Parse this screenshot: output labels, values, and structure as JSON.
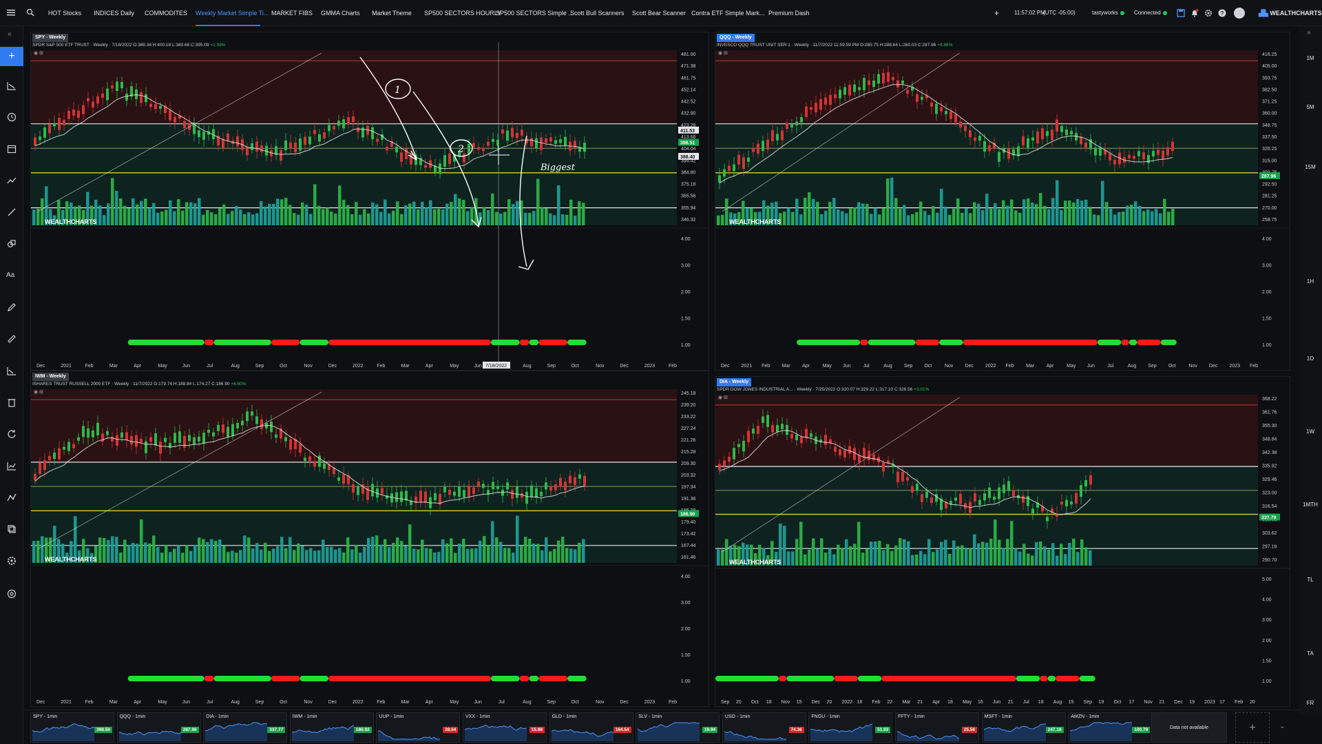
{
  "topbar": {
    "tabs": [
      {
        "label": "HOT Stocks",
        "x": 0
      },
      {
        "label": "INDICES Daily",
        "x": 0
      },
      {
        "label": "COMMODITES",
        "x": 0
      },
      {
        "label": "Weekly Market Simple Ti...",
        "x": 0
      },
      {
        "label": "MARKET FIBS",
        "x": 0
      },
      {
        "label": "GMMA Charts",
        "x": 0
      },
      {
        "label": "Market Theme",
        "x": 0
      },
      {
        "label": "SP500 SECTORS HOURLY",
        "x": 0
      },
      {
        "label": "SP500 SECTORS Simple ...",
        "x": 0
      },
      {
        "label": "Scott Bull Scanners",
        "x": 0
      },
      {
        "label": "Scott Bear Scanner",
        "x": 0
      },
      {
        "label": "Contra ETF Simple Mark...",
        "x": 0
      },
      {
        "label": "Premium Dash",
        "x": 0
      }
    ],
    "active_tab": 3,
    "add_tab": "+",
    "time": "11:57:02 PM",
    "timezone": "(UTC -05:00)",
    "broker": "tastyworks",
    "connection": "Connected",
    "brand": "WEALTHCHARTS"
  },
  "right_timeframes": [
    "1M",
    "5M",
    "15M",
    "1H",
    "1D",
    "1W",
    "1MTH",
    "TL",
    "TA",
    "FR"
  ],
  "panels": [
    {
      "id": "spy",
      "header": "SPY - Weekly",
      "sub_name": "SPDR S&P 500 ETF TRUST",
      "sub_info": "· Weekly · 7/18/2022 O:388.38 H:400.18 L:380.66 C:395.09",
      "sub_change": "+2.39%",
      "price_labels": [
        "481.00",
        "471.38",
        "461.75",
        "452.14",
        "442.52",
        "432.90",
        "423.28",
        "413.66",
        "404.04",
        "394.42",
        "384.80",
        "375.18",
        "365.56",
        "355.94",
        "346.32"
      ],
      "badges": [
        {
          "text": "411.53",
          "color": "#e5e7eb",
          "fg": "#111"
        },
        {
          "text": "398.51",
          "color": "#16a34a",
          "fg": "#fff"
        },
        {
          "text": "388.40",
          "color": "#e5e7eb",
          "fg": "#111"
        }
      ],
      "osc_labels": [
        "4.00",
        "3.00",
        "2.00",
        "1.50",
        "1.00"
      ],
      "dates": [
        "Dec",
        "2021",
        "Feb",
        "Mar",
        "Apr",
        "May",
        "Jun",
        "Jul",
        "Aug",
        "Sep",
        "Oct",
        "Nov",
        "Dec",
        "2022",
        "Feb",
        "Mar",
        "Apr",
        "May",
        "Jun",
        "Jul",
        "Aug",
        "Sep",
        "Oct",
        "Nov",
        "Dec",
        "2023",
        "Feb"
      ],
      "cursor_date": "7/18/2022",
      "annotations": [
        "1",
        "2",
        "Biggest"
      ],
      "logo": "WEALTHCHARTS"
    },
    {
      "id": "qqq",
      "header": "QQQ - Weekly",
      "sub_name": "INVESCO QQQ TRUST UNIT SER 1",
      "sub_info": "· Weekly · 11/7/2022 11:59:59 PM O:265.75 H:288.64 L:260.03 C:287.96",
      "sub_change": "+8.86%",
      "price_labels": [
        "416.25",
        "405.00",
        "393.75",
        "382.50",
        "371.25",
        "360.00",
        "348.75",
        "337.50",
        "326.25",
        "315.00",
        "303.75",
        "292.50",
        "281.25",
        "270.00",
        "258.75"
      ],
      "badges": [
        {
          "text": "287.96",
          "color": "#16a34a",
          "fg": "#fff"
        }
      ],
      "osc_labels": [
        "4.00",
        "3.00",
        "2.00",
        "1.50",
        "1.00"
      ],
      "dates": [
        "Dec",
        "2021",
        "Feb",
        "Mar",
        "Apr",
        "May",
        "Jun",
        "Jul",
        "Aug",
        "Sep",
        "Oct",
        "Nov",
        "Dec",
        "2022",
        "Feb",
        "Mar",
        "Apr",
        "May",
        "Jun",
        "Jul",
        "Aug",
        "Sep",
        "Oct",
        "Nov",
        "Dec",
        "2023",
        "Feb"
      ],
      "logo": "WEALTHCHARTS"
    },
    {
      "id": "iwm",
      "header": "IWM - Weekly",
      "sub_name": "ISHARES TRUST RUSSELL 2000 ETF",
      "sub_info": "· Weekly · 11/7/2022 O:179.74 H:188.84 L:174.27 C:186.90",
      "sub_change": "+4.60%",
      "price_labels": [
        "245.18",
        "239.20",
        "233.22",
        "227.24",
        "221.26",
        "215.28",
        "209.30",
        "203.32",
        "197.34",
        "191.36",
        "185.38",
        "179.40",
        "173.42",
        "167.44",
        "161.46"
      ],
      "badges": [
        {
          "text": "186.90",
          "color": "#16a34a",
          "fg": "#fff"
        }
      ],
      "osc_labels": [
        "4.00",
        "3.00",
        "2.00",
        "1.50",
        "1.00"
      ],
      "dates": [
        "Dec",
        "2021",
        "Feb",
        "Mar",
        "Apr",
        "May",
        "Jun",
        "Jul",
        "Aug",
        "Sep",
        "Oct",
        "Nov",
        "Dec",
        "2022",
        "Feb",
        "Mar",
        "Apr",
        "May",
        "Jun",
        "Jul",
        "Aug",
        "Sep",
        "Oct",
        "Nov",
        "Dec",
        "2023",
        "Feb"
      ],
      "logo": "WEALTHCHARTS"
    },
    {
      "id": "dia",
      "header": "DIA - Weekly",
      "sub_name": "SPDR DOW JONES INDUSTRIAL A...",
      "sub_info": "· Weekly · 7/25/2022 O:320.07 H:329.22 L:317.10 C:328.56",
      "sub_change": "+3.01%",
      "price_labels": [
        "368.22",
        "361.76",
        "355.30",
        "348.84",
        "342.38",
        "335.92",
        "329.46",
        "323.00",
        "316.54",
        "310.08",
        "303.62",
        "297.16",
        "290.70"
      ],
      "badges": [
        {
          "text": "337.79",
          "color": "#16a34a",
          "fg": "#fff"
        }
      ],
      "osc_labels": [
        "5.00",
        "4.00",
        "3.00",
        "2.00",
        "1.50",
        "1.00"
      ],
      "dates": [
        "Sep",
        "20",
        "Oct",
        "18",
        "Nov",
        "15",
        "Dec",
        "20",
        "2022",
        "18",
        "Feb",
        "22",
        "Mar",
        "21",
        "Apr",
        "18",
        "May",
        "16",
        "Jun",
        "21",
        "Jul",
        "18",
        "Aug",
        "15",
        "Sep",
        "19",
        "Oct",
        "17",
        "Nov",
        "21",
        "Dec",
        "19",
        "2023",
        "17",
        "Feb",
        "20"
      ],
      "logo": "WEALTHCHARTS"
    }
  ],
  "mini_charts": [
    {
      "name": "SPY - 1min",
      "price": "398.50",
      "dir": "up"
    },
    {
      "name": "QQQ - 1min",
      "price": "287.96",
      "dir": "up"
    },
    {
      "name": "DIA - 1min",
      "price": "337.77",
      "dir": "up"
    },
    {
      "name": "IWM - 1min",
      "price": "186.92",
      "dir": "up"
    },
    {
      "name": "UUP - 1min",
      "price": "28.64",
      "dir": "down"
    },
    {
      "name": "VXX - 1min",
      "price": "15.98",
      "dir": "down"
    },
    {
      "name": "GLD - 1min",
      "price": "164.54",
      "dir": "down"
    },
    {
      "name": "SLV - 1min",
      "price": "19.94",
      "dir": "up"
    },
    {
      "name": "USO - 1min",
      "price": "74.36",
      "dir": "down"
    },
    {
      "name": "FNGU - 1min",
      "price": "51.93",
      "dir": "up"
    },
    {
      "name": "FFTY - 1min",
      "price": "25.56",
      "dir": "down"
    },
    {
      "name": "MSFT - 1min",
      "price": "247.18",
      "dir": "up"
    },
    {
      "name": "AMZN - 1min",
      "price": "100.79",
      "dir": "up"
    }
  ],
  "no_data_text": "Data not available",
  "add_widget": "+"
}
